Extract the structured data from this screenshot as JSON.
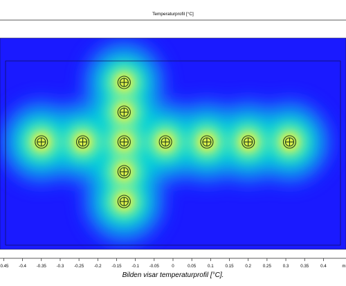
{
  "chart_data": {
    "type": "heatmap",
    "title": "Temperaturprofil [°C]",
    "x_ticks": [
      "-0.45",
      "-0.4",
      "-0.35",
      "-0.3",
      "-0.25",
      "-0.2",
      "-0.15",
      "-0.1",
      "-0.05",
      "0",
      "0.05",
      "0.1",
      "0.15",
      "0.2",
      "0.25",
      "0.3",
      "0.35",
      "0.4",
      "m"
    ],
    "x_tick_values": [
      -0.45,
      -0.4,
      -0.35,
      -0.3,
      -0.25,
      -0.2,
      -0.15,
      -0.1,
      -0.05,
      0,
      0.05,
      0.1,
      0.15,
      0.2,
      0.25,
      0.3,
      0.35,
      0.4
    ],
    "xlim": [
      -0.46,
      0.46
    ],
    "colormap": "rainbow",
    "colors": {
      "cold": "#1a1aff",
      "mid": "#00d8d8",
      "warm": "#f2f23a",
      "hot": "#ffe000"
    },
    "heat_sources": [
      {
        "x": -0.35,
        "row": 0
      },
      {
        "x": -0.24,
        "row": 0
      },
      {
        "x": -0.13,
        "row": 0
      },
      {
        "x": -0.02,
        "row": 0
      },
      {
        "x": 0.09,
        "row": 0
      },
      {
        "x": 0.2,
        "row": 0
      },
      {
        "x": 0.31,
        "row": 0
      },
      {
        "x": -0.13,
        "row": -2
      },
      {
        "x": -0.13,
        "row": -1
      },
      {
        "x": -0.13,
        "row": 1
      },
      {
        "x": -0.13,
        "row": 2
      }
    ],
    "caption": "Bilden visar temperaturprofil [°C]."
  }
}
